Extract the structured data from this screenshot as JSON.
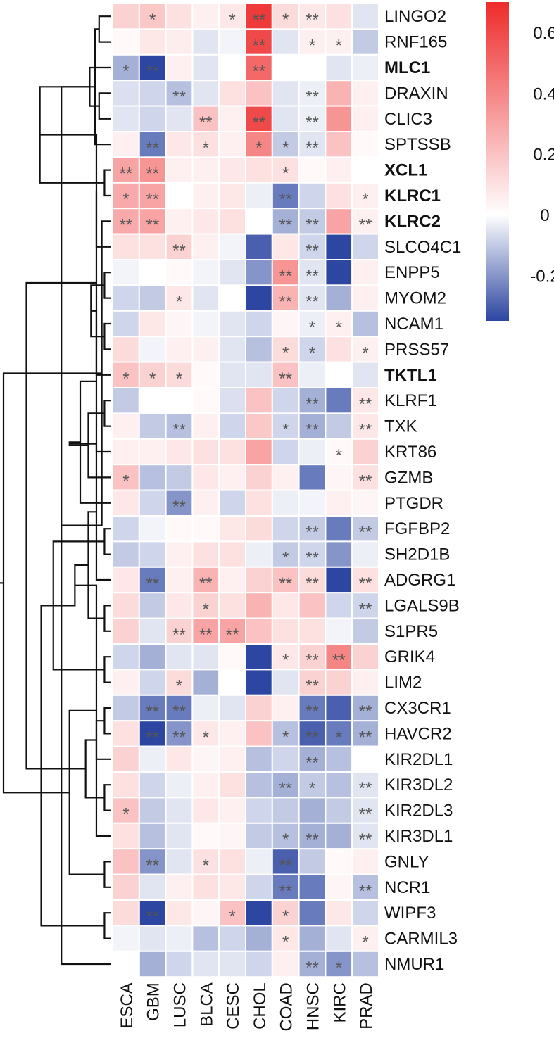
{
  "chart_data": {
    "type": "heatmap",
    "title": "",
    "columns": [
      "ESCA",
      "GBM",
      "LUSC",
      "BLCA",
      "CESC",
      "CHOL",
      "COAD",
      "HNSC",
      "KIRC",
      "PRAD"
    ],
    "rows": [
      {
        "gene": "LINGO2",
        "bold": false,
        "values": [
          0.15,
          0.18,
          0.1,
          0.05,
          0.08,
          0.65,
          0.12,
          0.08,
          0.1,
          -0.05
        ],
        "sig": [
          "",
          "*",
          "",
          "",
          "*",
          "**",
          "*",
          "**",
          "",
          ""
        ]
      },
      {
        "gene": "RNF165",
        "bold": false,
        "values": [
          0.02,
          0.08,
          0.06,
          -0.05,
          -0.02,
          0.6,
          -0.05,
          0.05,
          0.05,
          -0.1
        ],
        "sig": [
          "",
          "",
          "",
          "",
          "",
          "**",
          "",
          "*",
          "*",
          ""
        ]
      },
      {
        "gene": "MLC1",
        "bold": true,
        "values": [
          -0.15,
          -0.35,
          0.05,
          -0.05,
          0.0,
          0.5,
          0.0,
          0.0,
          -0.05,
          -0.03
        ],
        "sig": [
          "*",
          "**",
          "",
          "",
          "",
          "**",
          "",
          "",
          "",
          ""
        ]
      },
      {
        "gene": "DRAXIN",
        "bold": false,
        "values": [
          -0.06,
          -0.08,
          -0.12,
          -0.05,
          0.1,
          0.2,
          -0.05,
          -0.03,
          0.25,
          0.05
        ],
        "sig": [
          "",
          "",
          "**",
          "",
          "",
          "",
          "",
          "**",
          "",
          ""
        ]
      },
      {
        "gene": "CLIC3",
        "bold": false,
        "values": [
          -0.05,
          -0.08,
          -0.05,
          0.2,
          0.05,
          0.6,
          -0.05,
          -0.03,
          0.35,
          0.05
        ],
        "sig": [
          "",
          "",
          "",
          "**",
          "",
          "**",
          "",
          "**",
          "",
          ""
        ]
      },
      {
        "gene": "SPTSSB",
        "bold": false,
        "values": [
          0.05,
          -0.25,
          0.08,
          0.1,
          0.05,
          0.4,
          -0.1,
          -0.05,
          0.2,
          0.02
        ],
        "sig": [
          "",
          "**",
          "",
          "*",
          "",
          "*",
          "*",
          "**",
          "",
          ""
        ]
      },
      {
        "gene": "XCL1",
        "bold": true,
        "values": [
          0.3,
          0.35,
          0.05,
          0.05,
          0.08,
          0.1,
          0.1,
          0.02,
          0.05,
          0.0
        ],
        "sig": [
          "**",
          "**",
          "",
          "",
          "",
          "",
          "*",
          "",
          "",
          ""
        ]
      },
      {
        "gene": "KLRC1",
        "bold": true,
        "values": [
          0.28,
          0.3,
          0.0,
          0.05,
          0.08,
          -0.03,
          -0.25,
          -0.08,
          0.1,
          0.05
        ],
        "sig": [
          "*",
          "**",
          "",
          "",
          "",
          "",
          "**",
          "",
          "",
          "*"
        ]
      },
      {
        "gene": "KLRC2",
        "bold": true,
        "values": [
          0.28,
          0.3,
          0.05,
          0.08,
          0.1,
          0.0,
          -0.15,
          -0.1,
          0.3,
          0.05
        ],
        "sig": [
          "**",
          "**",
          "",
          "",
          "",
          "",
          "**",
          "**",
          "",
          "**"
        ]
      },
      {
        "gene": "SLCO4C1",
        "bold": false,
        "values": [
          0.1,
          0.1,
          0.15,
          0.05,
          -0.02,
          -0.3,
          0.08,
          -0.08,
          -0.38,
          -0.08
        ],
        "sig": [
          "",
          "",
          "**",
          "",
          "",
          "",
          "",
          "**",
          "",
          ""
        ]
      },
      {
        "gene": "ENPP5",
        "bold": false,
        "values": [
          -0.02,
          0.0,
          0.02,
          -0.02,
          -0.05,
          -0.2,
          0.35,
          -0.05,
          -0.35,
          0.05
        ],
        "sig": [
          "",
          "",
          "",
          "",
          "",
          "",
          "**",
          "**",
          "",
          ""
        ]
      },
      {
        "gene": "MYOM2",
        "bold": false,
        "values": [
          -0.08,
          -0.1,
          0.08,
          -0.05,
          0.0,
          -0.35,
          0.25,
          -0.05,
          -0.15,
          0.05
        ],
        "sig": [
          "",
          "",
          "*",
          "",
          "",
          "",
          "**",
          "**",
          "",
          ""
        ]
      },
      {
        "gene": "NCAM1",
        "bold": false,
        "values": [
          -0.08,
          0.08,
          0.03,
          -0.02,
          -0.05,
          -0.08,
          0.03,
          -0.03,
          0.05,
          -0.12
        ],
        "sig": [
          "",
          "",
          "",
          "",
          "",
          "",
          "",
          "*",
          "*",
          ""
        ]
      },
      {
        "gene": "PRSS57",
        "bold": false,
        "values": [
          0.12,
          -0.02,
          0.05,
          0.05,
          -0.05,
          -0.12,
          0.12,
          -0.08,
          0.1,
          0.05
        ],
        "sig": [
          "",
          "",
          "",
          "",
          "",
          "",
          "*",
          "*",
          "",
          "*"
        ]
      },
      {
        "gene": "TKTL1",
        "bold": true,
        "values": [
          0.2,
          0.15,
          0.12,
          0.02,
          -0.05,
          -0.05,
          0.2,
          -0.03,
          0.0,
          -0.05
        ],
        "sig": [
          "*",
          "*",
          "*",
          "",
          "",
          "",
          "**",
          "",
          "",
          ""
        ]
      },
      {
        "gene": "KLRF1",
        "bold": false,
        "values": [
          -0.1,
          0.0,
          0.0,
          0.02,
          -0.06,
          0.2,
          -0.08,
          -0.15,
          -0.25,
          0.08
        ],
        "sig": [
          "",
          "",
          "",
          "",
          "",
          "",
          "",
          "**",
          "",
          "**"
        ]
      },
      {
        "gene": "TXK",
        "bold": false,
        "values": [
          0.05,
          -0.1,
          -0.12,
          0.05,
          -0.08,
          0.18,
          -0.08,
          -0.15,
          -0.1,
          0.08
        ],
        "sig": [
          "",
          "",
          "**",
          "",
          "",
          "",
          "*",
          "**",
          "",
          "**"
        ]
      },
      {
        "gene": "KRT86",
        "bold": false,
        "values": [
          0.05,
          0.05,
          0.08,
          0.1,
          0.1,
          0.3,
          -0.08,
          -0.03,
          0.02,
          0.15
        ],
        "sig": [
          "",
          "",
          "",
          "",
          "",
          "",
          "",
          "",
          "*",
          ""
        ]
      },
      {
        "gene": "GZMB",
        "bold": false,
        "values": [
          0.2,
          -0.12,
          -0.1,
          0.08,
          0.05,
          0.15,
          0.05,
          -0.25,
          0.03,
          0.1
        ],
        "sig": [
          "*",
          "",
          "",
          "",
          "",
          "",
          "",
          "",
          "",
          "**"
        ]
      },
      {
        "gene": "PTGDR",
        "bold": false,
        "values": [
          0.08,
          -0.08,
          -0.2,
          0.05,
          -0.08,
          0.1,
          -0.03,
          -0.02,
          0.05,
          0.03
        ],
        "sig": [
          "",
          "",
          "**",
          "",
          "",
          "",
          "",
          "",
          "",
          ""
        ]
      },
      {
        "gene": "FGFBP2",
        "bold": false,
        "values": [
          -0.08,
          -0.02,
          0.02,
          0.02,
          0.08,
          0.12,
          -0.08,
          -0.1,
          -0.25,
          -0.1
        ],
        "sig": [
          "",
          "",
          "",
          "",
          "",
          "",
          "",
          "**",
          "",
          "**"
        ]
      },
      {
        "gene": "SH2D1B",
        "bold": false,
        "values": [
          -0.1,
          -0.08,
          0.05,
          0.1,
          0.1,
          -0.03,
          -0.1,
          -0.08,
          -0.2,
          -0.03
        ],
        "sig": [
          "",
          "",
          "",
          "",
          "",
          "",
          "*",
          "**",
          "",
          ""
        ]
      },
      {
        "gene": "ADGRG1",
        "bold": false,
        "values": [
          0.08,
          -0.25,
          0.05,
          0.25,
          0.05,
          0.15,
          0.2,
          0.12,
          -0.38,
          0.1
        ],
        "sig": [
          "",
          "**",
          "",
          "**",
          "",
          "",
          "**",
          "**",
          "",
          "**"
        ]
      },
      {
        "gene": "LGALS9B",
        "bold": false,
        "values": [
          0.12,
          -0.1,
          0.08,
          0.15,
          0.1,
          0.25,
          0.08,
          0.2,
          -0.08,
          -0.08
        ],
        "sig": [
          "",
          "",
          "",
          "*",
          "",
          "",
          "",
          "",
          "",
          "**"
        ]
      },
      {
        "gene": "S1PR5",
        "bold": false,
        "values": [
          0.15,
          -0.05,
          0.15,
          0.3,
          0.3,
          0.2,
          0.1,
          0.1,
          -0.02,
          -0.1
        ],
        "sig": [
          "",
          "",
          "**",
          "**",
          "**",
          "",
          "",
          "",
          "",
          ""
        ]
      },
      {
        "gene": "GRIK4",
        "bold": false,
        "values": [
          -0.08,
          -0.15,
          -0.05,
          -0.05,
          0.02,
          -0.35,
          0.08,
          0.15,
          0.4,
          0.15
        ],
        "sig": [
          "",
          "",
          "",
          "",
          "",
          "",
          "*",
          "**",
          "**",
          ""
        ]
      },
      {
        "gene": "LIM2",
        "bold": false,
        "values": [
          0.05,
          -0.08,
          0.12,
          -0.15,
          0.0,
          -0.35,
          -0.05,
          0.15,
          0.15,
          0.05
        ],
        "sig": [
          "",
          "",
          "*",
          "",
          "",
          "",
          "",
          "**",
          "",
          ""
        ]
      },
      {
        "gene": "CX3CR1",
        "bold": false,
        "values": [
          -0.1,
          -0.25,
          -0.25,
          -0.03,
          -0.05,
          0.15,
          0.05,
          -0.25,
          -0.3,
          -0.15
        ],
        "sig": [
          "",
          "**",
          "**",
          "",
          "",
          "",
          "",
          "**",
          "",
          "**"
        ]
      },
      {
        "gene": "HAVCR2",
        "bold": false,
        "values": [
          0.1,
          -0.35,
          -0.2,
          0.08,
          0.05,
          0.2,
          -0.12,
          -0.3,
          -0.25,
          -0.15
        ],
        "sig": [
          "",
          "**",
          "**",
          "*",
          "",
          "",
          "*",
          "**",
          "*",
          "**"
        ]
      },
      {
        "gene": "KIR2DL1",
        "bold": false,
        "values": [
          0.15,
          -0.03,
          0.08,
          0.03,
          0.05,
          -0.12,
          -0.08,
          -0.15,
          -0.12,
          0.0
        ],
        "sig": [
          "",
          "",
          "",
          "",
          "",
          "",
          "",
          "**",
          "",
          ""
        ]
      },
      {
        "gene": "KIR3DL2",
        "bold": false,
        "values": [
          0.1,
          -0.08,
          -0.03,
          0.05,
          0.1,
          -0.12,
          -0.15,
          -0.1,
          -0.12,
          -0.05
        ],
        "sig": [
          "",
          "",
          "",
          "",
          "",
          "",
          "**",
          "*",
          "",
          "**"
        ]
      },
      {
        "gene": "KIR2DL3",
        "bold": false,
        "values": [
          0.2,
          -0.1,
          -0.05,
          0.08,
          0.05,
          -0.08,
          -0.1,
          -0.15,
          -0.1,
          -0.05
        ],
        "sig": [
          "*",
          "",
          "",
          "",
          "",
          "",
          "",
          "",
          "",
          "**"
        ]
      },
      {
        "gene": "KIR3DL1",
        "bold": false,
        "values": [
          0.1,
          -0.12,
          -0.05,
          0.02,
          0.03,
          -0.1,
          -0.12,
          -0.15,
          -0.15,
          -0.05
        ],
        "sig": [
          "",
          "",
          "",
          "",
          "",
          "",
          "*",
          "**",
          "",
          "**"
        ]
      },
      {
        "gene": "GNLY",
        "bold": false,
        "values": [
          0.2,
          -0.2,
          -0.05,
          0.1,
          0.1,
          -0.03,
          -0.3,
          -0.1,
          0.02,
          0.05
        ],
        "sig": [
          "",
          "**",
          "",
          "*",
          "",
          "",
          "**",
          "",
          "",
          ""
        ]
      },
      {
        "gene": "NCR1",
        "bold": false,
        "values": [
          0.15,
          -0.05,
          0.05,
          0.1,
          0.08,
          -0.08,
          -0.25,
          -0.25,
          0.03,
          -0.12
        ],
        "sig": [
          "",
          "",
          "",
          "",
          "",
          "",
          "**",
          "",
          "",
          "**"
        ]
      },
      {
        "gene": "WIPF3",
        "bold": false,
        "values": [
          0.12,
          -0.35,
          0.08,
          0.03,
          0.2,
          -0.35,
          0.15,
          -0.25,
          0.08,
          -0.08
        ],
        "sig": [
          "",
          "**",
          "",
          "",
          "*",
          "",
          "*",
          "",
          "",
          ""
        ]
      },
      {
        "gene": "CARMIL3",
        "bold": false,
        "values": [
          -0.02,
          -0.05,
          -0.03,
          -0.12,
          -0.08,
          -0.15,
          0.08,
          -0.15,
          -0.05,
          0.05
        ],
        "sig": [
          "",
          "",
          "",
          "",
          "",
          "",
          "*",
          "",
          "",
          "*"
        ]
      },
      {
        "gene": "NMUR1",
        "bold": false,
        "values": [
          0.0,
          -0.15,
          -0.08,
          -0.05,
          -0.05,
          -0.08,
          0.05,
          -0.15,
          -0.2,
          -0.12
        ],
        "sig": [
          "",
          "",
          "",
          "",
          "",
          "",
          "",
          "**",
          "*",
          ""
        ]
      }
    ],
    "colorbar": {
      "min": -0.35,
      "max": 0.7,
      "ticks": [
        0.6,
        0.4,
        0.2,
        0,
        -0.2
      ],
      "tick_labels": [
        "0.6",
        "0.4",
        "0.2",
        "0",
        "-0.2"
      ],
      "colors": {
        "low": "#2c46a1",
        "mid": "#ffffff",
        "high": "#ee2b2b"
      }
    },
    "dendrogram": {
      "merges": [
        [
          0,
          1,
          0.45
        ],
        [
          3,
          4,
          0.45
        ],
        [
          38,
          5,
          0.6
        ],
        [
          39,
          2,
          0.8
        ],
        [
          40,
          37,
          1.85
        ],
        [
          6,
          7,
          0.25
        ],
        [
          42,
          8,
          0.35
        ],
        [
          43,
          41,
          2.65
        ],
        [
          10,
          11,
          0.25
        ],
        [
          9,
          45,
          0.55
        ],
        [
          12,
          13,
          0.25
        ],
        [
          47,
          14,
          0.55
        ],
        [
          46,
          48,
          0.75
        ],
        [
          15,
          16,
          0.25
        ],
        [
          50,
          17,
          0.55
        ],
        [
          51,
          18,
          0.85
        ],
        [
          52,
          19,
          1.15
        ],
        [
          20,
          21,
          0.25
        ],
        [
          53,
          54,
          1.55
        ],
        [
          23,
          24,
          0.25
        ],
        [
          22,
          56,
          0.55
        ],
        [
          25,
          26,
          0.25
        ],
        [
          58,
          57,
          0.85
        ],
        [
          55,
          59,
          2.15
        ],
        [
          27,
          28,
          0.25
        ],
        [
          61,
          60,
          1.35
        ],
        [
          30,
          31,
          0.25
        ],
        [
          29,
          62,
          0.55
        ],
        [
          33,
          34,
          0.25
        ],
        [
          32,
          63,
          0.55
        ],
        [
          35,
          36,
          0.25
        ],
        [
          64,
          65,
          0.95
        ],
        [
          66,
          67,
          1.55
        ],
        [
          61,
          68,
          2.6
        ],
        [
          49,
          69,
          3.15
        ],
        [
          44,
          70,
          4.0
        ]
      ]
    }
  }
}
